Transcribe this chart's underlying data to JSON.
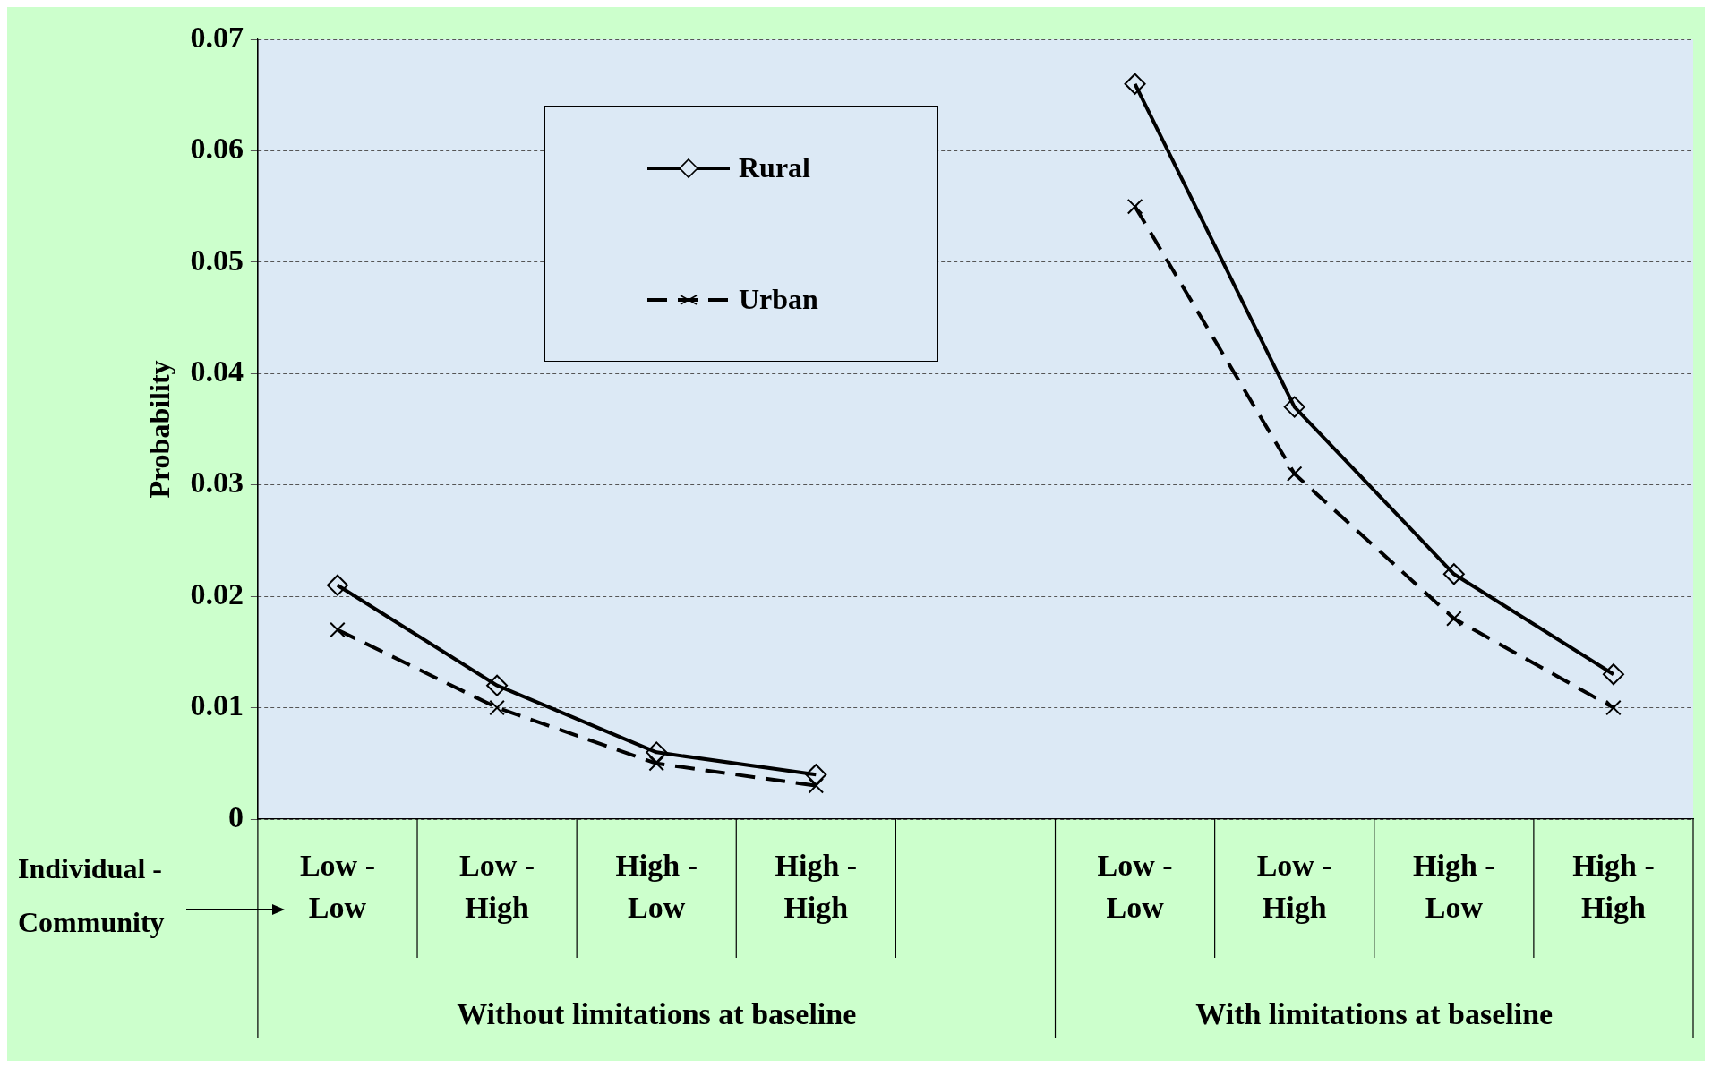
{
  "chart_data": {
    "type": "line",
    "xlabel": "Individual - Community",
    "ylabel": "Probability",
    "categories": [
      "Low - Low",
      "Low - High",
      "High - Low",
      "High - High",
      null,
      "Low - Low",
      "Low - High",
      "High - Low",
      "High - High"
    ],
    "series": [
      {
        "name": "Rural",
        "color": "#000000",
        "marker": "diamond",
        "line_style": "solid",
        "values": [
          0.021,
          0.012,
          0.006,
          0.004,
          null,
          0.066,
          0.037,
          0.022,
          0.013
        ]
      },
      {
        "name": "Urban",
        "color": "#000000",
        "marker": "cross",
        "line_style": "dashed",
        "values": [
          0.017,
          0.01,
          0.005,
          0.003,
          null,
          0.055,
          0.031,
          0.018,
          0.01
        ]
      }
    ],
    "ylim": [
      0,
      0.07
    ],
    "yticks": [
      0,
      0.01,
      0.02,
      0.03,
      0.04,
      0.05,
      0.06,
      0.07
    ],
    "grid": "y",
    "legend": "top left",
    "annotations": [
      "Without limitations at baseline",
      "With limitations at baseline"
    ]
  }
}
